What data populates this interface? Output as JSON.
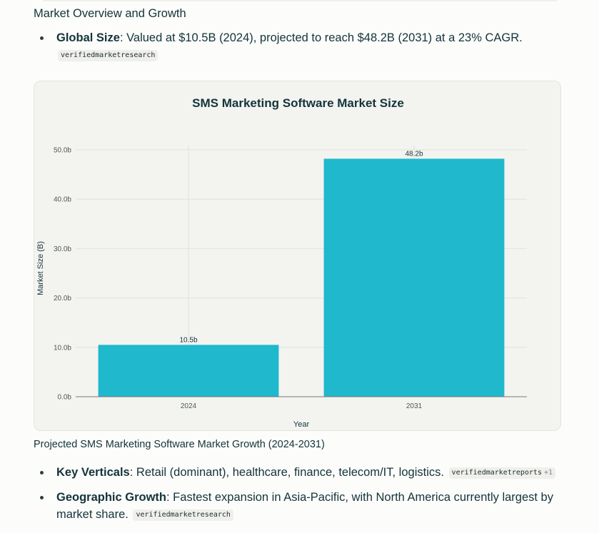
{
  "section_title": "Market Overview and Growth",
  "bullets_top": [
    {
      "term": "Global Size",
      "text": ": Valued at $10.5B (2024), projected to reach $48.2B (2031) at a 23% CAGR. ",
      "citation": "verifiedmarketresearch",
      "citation_more": ""
    }
  ],
  "chart_data": {
    "type": "bar",
    "title": "SMS Marketing Software Market Size",
    "xlabel": "Year",
    "ylabel": "Market Size (B)",
    "categories": [
      "2024",
      "2031"
    ],
    "values": [
      10.5,
      48.2
    ],
    "data_labels": [
      "10.5b",
      "48.2b"
    ],
    "yticks": [
      "0.0b",
      "10.0b",
      "20.0b",
      "30.0b",
      "40.0b",
      "50.0b"
    ],
    "ylim": [
      0,
      50
    ],
    "bar_color": "#1fb8cd",
    "grid": true
  },
  "caption": "Projected SMS Marketing Software Market Growth (2024-2031)",
  "bullets_bottom": [
    {
      "term": "Key Verticals",
      "text": ": Retail (dominant), healthcare, finance, telecom/IT, logistics. ",
      "citation": "verifiedmarketreports",
      "citation_more": "+1"
    },
    {
      "term": "Geographic Growth",
      "text": ": Fastest expansion in Asia-Pacific, with North America currently largest by market share. ",
      "citation": "verifiedmarketresearch",
      "citation_more": ""
    }
  ]
}
